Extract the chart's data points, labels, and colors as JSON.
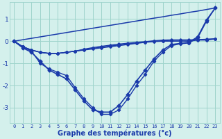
{
  "xlabel": "Graphe des températures (°c)",
  "hours": [
    0,
    1,
    2,
    3,
    4,
    5,
    6,
    7,
    8,
    9,
    10,
    11,
    12,
    13,
    14,
    15,
    16,
    17,
    18,
    19,
    20,
    21,
    22,
    23
  ],
  "curve_straight_top": [
    0.0,
    0.065,
    0.13,
    0.195,
    0.26,
    0.325,
    0.39,
    0.455,
    0.52,
    0.585,
    0.65,
    0.715,
    0.78,
    0.845,
    0.91,
    0.975,
    1.04,
    1.1,
    1.17,
    1.23,
    1.3,
    1.36,
    1.43,
    1.5
  ],
  "curve_flat1": [
    0.0,
    -0.25,
    -0.4,
    -0.5,
    -0.55,
    -0.55,
    -0.5,
    -0.45,
    -0.4,
    -0.35,
    -0.3,
    -0.25,
    -0.2,
    -0.15,
    -0.1,
    -0.05,
    -0.02,
    0.0,
    0.0,
    0.0,
    0.0,
    0.05,
    0.05,
    0.1
  ],
  "curve_flat2": [
    0.0,
    -0.25,
    -0.4,
    -0.5,
    -0.55,
    -0.55,
    -0.5,
    -0.45,
    -0.38,
    -0.32,
    -0.27,
    -0.22,
    -0.17,
    -0.12,
    -0.08,
    -0.04,
    0.0,
    0.02,
    0.04,
    0.04,
    0.04,
    0.06,
    0.08,
    0.1
  ],
  "curve_flat3": [
    0.0,
    -0.25,
    -0.4,
    -0.5,
    -0.55,
    -0.55,
    -0.5,
    -0.45,
    -0.36,
    -0.29,
    -0.23,
    -0.18,
    -0.13,
    -0.09,
    -0.05,
    -0.02,
    0.02,
    0.05,
    0.06,
    0.06,
    0.06,
    0.07,
    0.09,
    0.11
  ],
  "curve_deep1": [
    0.0,
    -0.3,
    -0.5,
    -0.9,
    -1.3,
    -1.5,
    -1.7,
    -2.2,
    -2.7,
    -3.1,
    -3.2,
    -3.2,
    -2.9,
    -2.4,
    -1.8,
    -1.3,
    -0.8,
    -0.4,
    -0.15,
    -0.1,
    -0.05,
    0.2,
    0.95,
    1.5
  ],
  "curve_deep2": [
    0.0,
    -0.25,
    -0.45,
    -1.0,
    -1.25,
    -1.4,
    -1.55,
    -2.1,
    -2.6,
    -3.0,
    -3.3,
    -3.3,
    -3.1,
    -2.6,
    -2.0,
    -1.5,
    -0.9,
    -0.5,
    -0.2,
    -0.12,
    -0.08,
    0.15,
    0.9,
    1.5
  ],
  "bg_color": "#d4f0ec",
  "line_color": "#1a3aaa",
  "grid_color": "#9fd4cc",
  "ylim": [
    -3.7,
    1.75
  ],
  "yticks": [
    -3,
    -2,
    -1,
    0,
    1
  ],
  "xlim": [
    -0.5,
    23.5
  ],
  "xticks": [
    0,
    1,
    2,
    3,
    4,
    5,
    6,
    7,
    8,
    9,
    10,
    11,
    12,
    13,
    14,
    15,
    16,
    17,
    18,
    19,
    20,
    21,
    22,
    23
  ]
}
